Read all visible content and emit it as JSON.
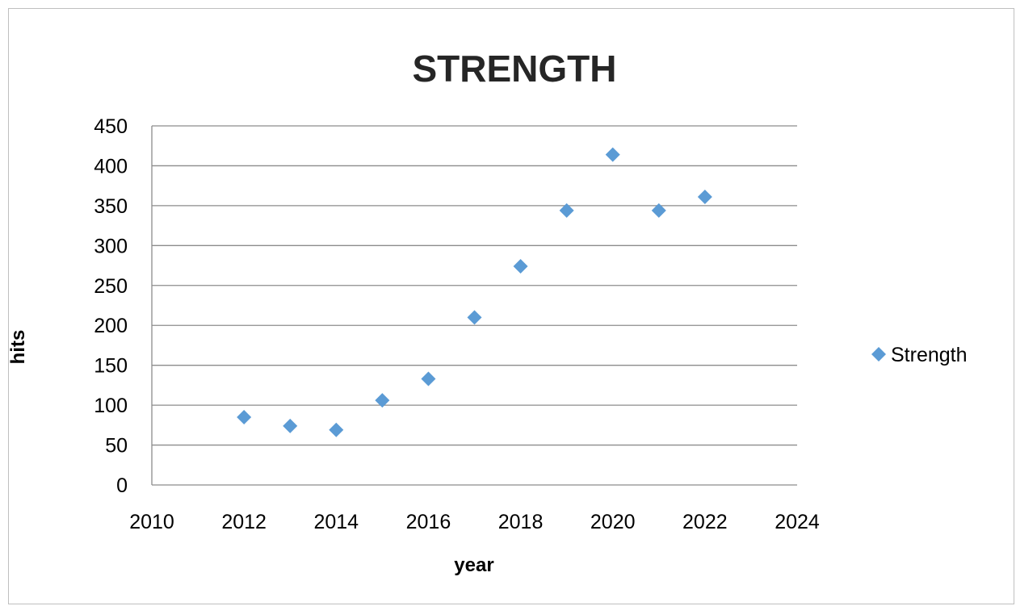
{
  "chart_data": {
    "type": "scatter",
    "title": "STRENGTH",
    "xlabel": "year",
    "ylabel": "hits",
    "xlim": [
      2010,
      2024
    ],
    "ylim": [
      0,
      450
    ],
    "x_ticks": [
      "2010",
      "2012",
      "2014",
      "2016",
      "2018",
      "2020",
      "2022",
      "2024"
    ],
    "y_ticks": [
      "0",
      "50",
      "100",
      "150",
      "200",
      "250",
      "300",
      "350",
      "400",
      "450"
    ],
    "grid": "horizontal",
    "legend_position": "right",
    "series": [
      {
        "name": "Strength",
        "color": "#5b9bd5",
        "marker": "diamond",
        "points": [
          {
            "x": 2012,
            "y": 85
          },
          {
            "x": 2013,
            "y": 74
          },
          {
            "x": 2014,
            "y": 69
          },
          {
            "x": 2015,
            "y": 106
          },
          {
            "x": 2016,
            "y": 133
          },
          {
            "x": 2017,
            "y": 210
          },
          {
            "x": 2018,
            "y": 274
          },
          {
            "x": 2019,
            "y": 344
          },
          {
            "x": 2020,
            "y": 414
          },
          {
            "x": 2021,
            "y": 344
          },
          {
            "x": 2022,
            "y": 361
          }
        ]
      }
    ]
  }
}
